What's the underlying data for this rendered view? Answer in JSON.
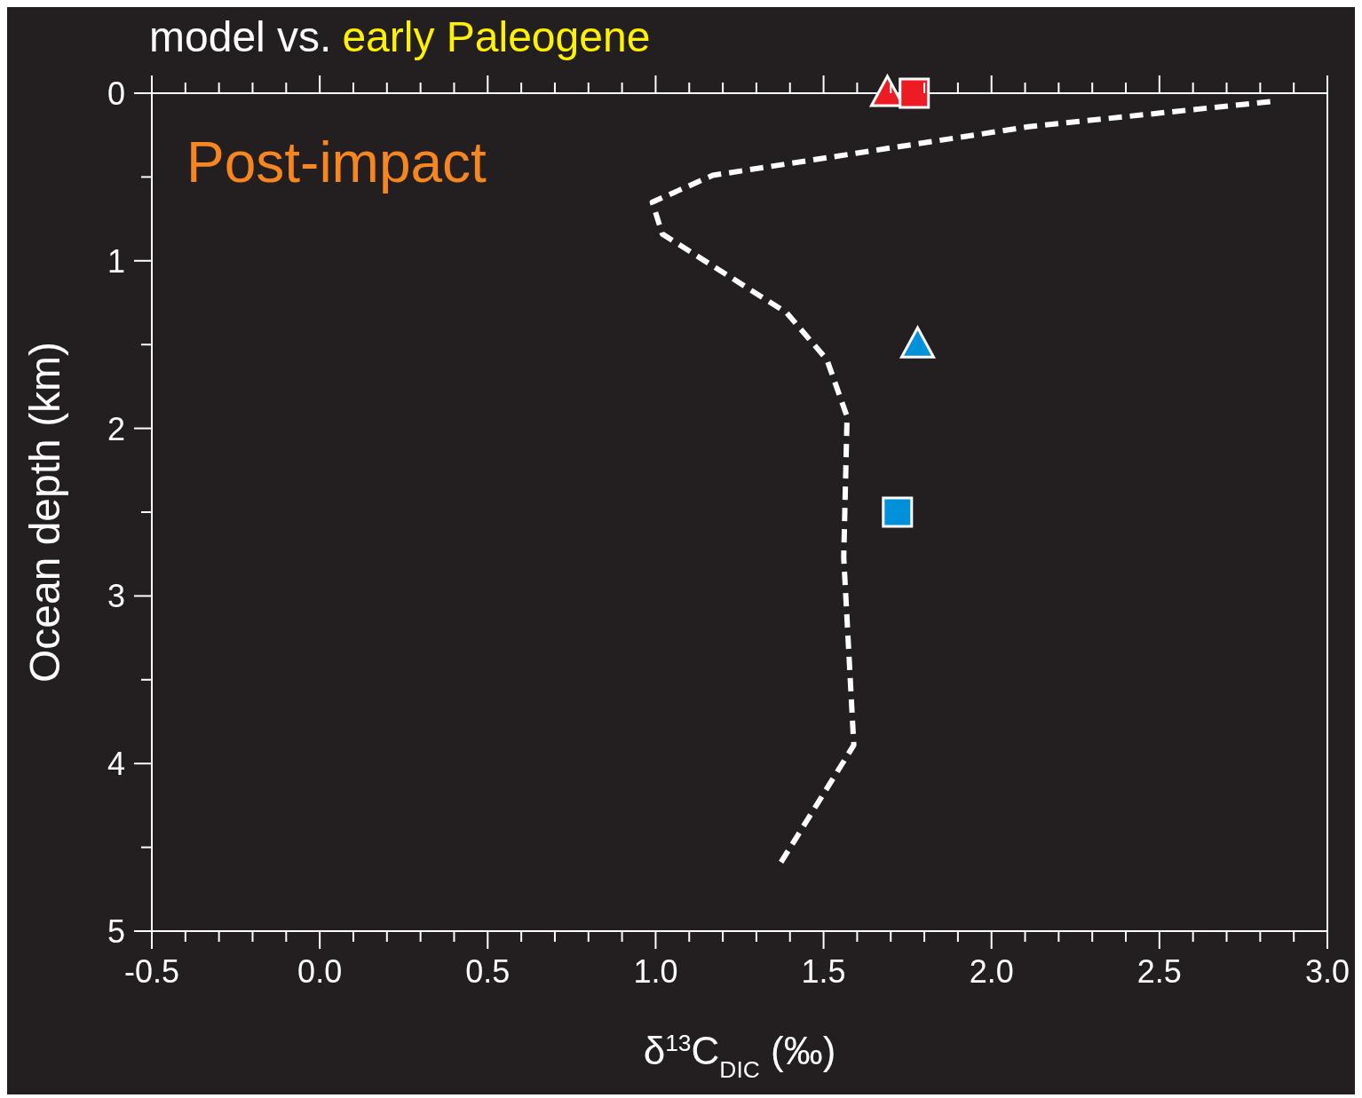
{
  "chart_data": {
    "type": "scatter",
    "title": "model vs.",
    "subtitle": "early Paleogene",
    "xlabel": "δ$^{13}$C$_{DIC}$ (‰)",
    "ylabel": "Ocean depth (km)",
    "annotations": [
      "Post-impact"
    ],
    "xlim": [
      -0.5,
      3.0
    ],
    "xticks": [
      {
        "value": -0.5,
        "label": "-0.5"
      },
      {
        "value": -0.4,
        "label": null
      },
      {
        "value": -0.3,
        "label": null
      },
      {
        "value": -0.2,
        "label": null
      },
      {
        "value": -0.1,
        "label": null
      },
      {
        "value": 0,
        "label": "0.0"
      },
      {
        "value": 0.1,
        "label": null
      },
      {
        "value": 0.2,
        "label": null
      },
      {
        "value": 0.3,
        "label": null
      },
      {
        "value": 0.4,
        "label": null
      },
      {
        "value": 0.5,
        "label": "0.5"
      },
      {
        "value": 0.6,
        "label": null
      },
      {
        "value": 0.7,
        "label": null
      },
      {
        "value": 0.8,
        "label": null
      },
      {
        "value": 0.9,
        "label": null
      },
      {
        "value": 1,
        "label": "1.0"
      },
      {
        "value": 1.1,
        "label": null
      },
      {
        "value": 1.2,
        "label": null
      },
      {
        "value": 1.3,
        "label": null
      },
      {
        "value": 1.4,
        "label": null
      },
      {
        "value": 1.5,
        "label": "1.5"
      },
      {
        "value": 1.6,
        "label": null
      },
      {
        "value": 1.7,
        "label": null
      },
      {
        "value": 1.8,
        "label": null
      },
      {
        "value": 1.9,
        "label": null
      },
      {
        "value": 2,
        "label": "2.0"
      },
      {
        "value": 2.1,
        "label": null
      },
      {
        "value": 2.2,
        "label": null
      },
      {
        "value": 2.3,
        "label": null
      },
      {
        "value": 2.4,
        "label": null
      },
      {
        "value": 2.5,
        "label": "2.5"
      },
      {
        "value": 2.6,
        "label": null
      },
      {
        "value": 2.7,
        "label": null
      },
      {
        "value": 2.8,
        "label": null
      },
      {
        "value": 2.9,
        "label": null
      },
      {
        "value": 3,
        "label": "3.0"
      }
    ],
    "ylim": [
      5,
      0
    ],
    "yticks": [
      0,
      {
        "value": 0.5,
        "label": null
      },
      1,
      {
        "value": 1.5,
        "label": null
      },
      2,
      {
        "value": 2.5,
        "label": null
      },
      3,
      {
        "value": 3.5,
        "label": null
      },
      4,
      {
        "value": 4.5,
        "label": null
      },
      5
    ],
    "series": [
      {
        "type": "line",
        "color": "#ffffff",
        "line_style": "dashed",
        "marker": "none",
        "x": [
          2.83,
          2.11,
          1.17,
          0.99,
          1.02,
          1.39,
          1.51,
          1.57,
          1.56,
          1.59,
          1.37
        ],
        "values": [
          0.05,
          0.2,
          0.49,
          0.65,
          0.84,
          1.31,
          1.59,
          1.93,
          2.77,
          3.89,
          4.6
        ]
      },
      {
        "type": "scatter",
        "color": "#ed1c24",
        "marker": "triangle",
        "x": [
          1.69
        ],
        "values": [
          0
        ]
      },
      {
        "type": "scatter",
        "color": "#ed1c24",
        "marker": "square",
        "x": [
          1.77
        ],
        "values": [
          0
        ]
      },
      {
        "type": "scatter",
        "color": "#0091da",
        "marker": "triangle",
        "x": [
          1.78
        ],
        "values": [
          1.5
        ]
      },
      {
        "type": "scatter",
        "color": "#0091da",
        "marker": "square",
        "x": [
          1.72
        ],
        "values": [
          2.5
        ]
      }
    ]
  }
}
